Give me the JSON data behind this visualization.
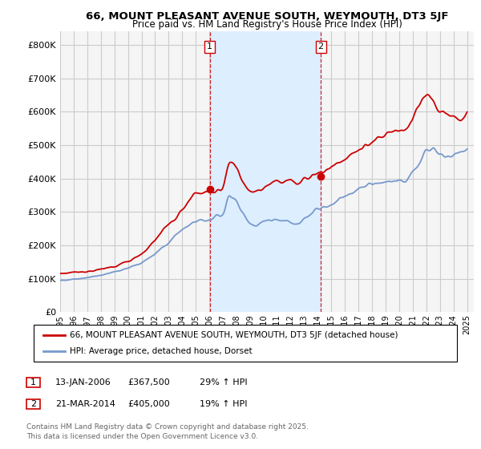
{
  "title": "66, MOUNT PLEASANT AVENUE SOUTH, WEYMOUTH, DT3 5JF",
  "subtitle": "Price paid vs. HM Land Registry's House Price Index (HPI)",
  "legend_line1": "66, MOUNT PLEASANT AVENUE SOUTH, WEYMOUTH, DT3 5JF (detached house)",
  "legend_line2": "HPI: Average price, detached house, Dorset",
  "annotation1": {
    "num": "1",
    "date": "13-JAN-2006",
    "price": "£367,500",
    "hpi": "29% ↑ HPI",
    "x_year": 2006.04
  },
  "annotation2": {
    "num": "2",
    "date": "21-MAR-2014",
    "price": "£405,000",
    "hpi": "19% ↑ HPI",
    "x_year": 2014.22
  },
  "footer": "Contains HM Land Registry data © Crown copyright and database right 2025.\nThis data is licensed under the Open Government Licence v3.0.",
  "yticks": [
    0,
    100000,
    200000,
    300000,
    400000,
    500000,
    600000,
    700000,
    800000
  ],
  "ylim": [
    0,
    840000
  ],
  "xlim_start": 1995.0,
  "xlim_end": 2025.5,
  "background_color": "#ffffff",
  "plot_bg_color": "#f5f5f5",
  "grid_color": "#cccccc",
  "red_line_color": "#cc0000",
  "blue_line_color": "#7799cc",
  "vline_color": "#cc0000",
  "span_color": "#ddeeff",
  "hpi_x": [
    1995.0,
    1995.08,
    1995.17,
    1995.25,
    1995.33,
    1995.42,
    1995.5,
    1995.58,
    1995.67,
    1995.75,
    1995.83,
    1995.92,
    1996.0,
    1996.08,
    1996.17,
    1996.25,
    1996.33,
    1996.42,
    1996.5,
    1996.58,
    1996.67,
    1996.75,
    1996.83,
    1996.92,
    1997.0,
    1997.08,
    1997.17,
    1997.25,
    1997.33,
    1997.42,
    1997.5,
    1997.58,
    1997.67,
    1997.75,
    1997.83,
    1997.92,
    1998.0,
    1998.08,
    1998.17,
    1998.25,
    1998.33,
    1998.42,
    1998.5,
    1998.58,
    1998.67,
    1998.75,
    1998.83,
    1998.92,
    1999.0,
    1999.08,
    1999.17,
    1999.25,
    1999.33,
    1999.42,
    1999.5,
    1999.58,
    1999.67,
    1999.75,
    1999.83,
    1999.92,
    2000.0,
    2000.08,
    2000.17,
    2000.25,
    2000.33,
    2000.42,
    2000.5,
    2000.58,
    2000.67,
    2000.75,
    2000.83,
    2000.92,
    2001.0,
    2001.08,
    2001.17,
    2001.25,
    2001.33,
    2001.42,
    2001.5,
    2001.58,
    2001.67,
    2001.75,
    2001.83,
    2001.92,
    2002.0,
    2002.08,
    2002.17,
    2002.25,
    2002.33,
    2002.42,
    2002.5,
    2002.58,
    2002.67,
    2002.75,
    2002.83,
    2002.92,
    2003.0,
    2003.08,
    2003.17,
    2003.25,
    2003.33,
    2003.42,
    2003.5,
    2003.58,
    2003.67,
    2003.75,
    2003.83,
    2003.92,
    2004.0,
    2004.08,
    2004.17,
    2004.25,
    2004.33,
    2004.42,
    2004.5,
    2004.58,
    2004.67,
    2004.75,
    2004.83,
    2004.92,
    2005.0,
    2005.08,
    2005.17,
    2005.25,
    2005.33,
    2005.42,
    2005.5,
    2005.58,
    2005.67,
    2005.75,
    2005.83,
    2005.92,
    2006.0,
    2006.08,
    2006.17,
    2006.25,
    2006.33,
    2006.42,
    2006.5,
    2006.58,
    2006.67,
    2006.75,
    2006.83,
    2006.92,
    2007.0,
    2007.08,
    2007.17,
    2007.25,
    2007.33,
    2007.42,
    2007.5,
    2007.58,
    2007.67,
    2007.75,
    2007.83,
    2007.92,
    2008.0,
    2008.08,
    2008.17,
    2008.25,
    2008.33,
    2008.42,
    2008.5,
    2008.58,
    2008.67,
    2008.75,
    2008.83,
    2008.92,
    2009.0,
    2009.08,
    2009.17,
    2009.25,
    2009.33,
    2009.42,
    2009.5,
    2009.58,
    2009.67,
    2009.75,
    2009.83,
    2009.92,
    2010.0,
    2010.08,
    2010.17,
    2010.25,
    2010.33,
    2010.42,
    2010.5,
    2010.58,
    2010.67,
    2010.75,
    2010.83,
    2010.92,
    2011.0,
    2011.08,
    2011.17,
    2011.25,
    2011.33,
    2011.42,
    2011.5,
    2011.58,
    2011.67,
    2011.75,
    2011.83,
    2011.92,
    2012.0,
    2012.08,
    2012.17,
    2012.25,
    2012.33,
    2012.42,
    2012.5,
    2012.58,
    2012.67,
    2012.75,
    2012.83,
    2012.92,
    2013.0,
    2013.08,
    2013.17,
    2013.25,
    2013.33,
    2013.42,
    2013.5,
    2013.58,
    2013.67,
    2013.75,
    2013.83,
    2013.92,
    2014.0,
    2014.08,
    2014.17,
    2014.25,
    2014.33,
    2014.42,
    2014.5,
    2014.58,
    2014.67,
    2014.75,
    2014.83,
    2014.92,
    2015.0,
    2015.08,
    2015.17,
    2015.25,
    2015.33,
    2015.42,
    2015.5,
    2015.58,
    2015.67,
    2015.75,
    2015.83,
    2015.92,
    2016.0,
    2016.08,
    2016.17,
    2016.25,
    2016.33,
    2016.42,
    2016.5,
    2016.58,
    2016.67,
    2016.75,
    2016.83,
    2016.92,
    2017.0,
    2017.08,
    2017.17,
    2017.25,
    2017.33,
    2017.42,
    2017.5,
    2017.58,
    2017.67,
    2017.75,
    2017.83,
    2017.92,
    2018.0,
    2018.08,
    2018.17,
    2018.25,
    2018.33,
    2018.42,
    2018.5,
    2018.58,
    2018.67,
    2018.75,
    2018.83,
    2018.92,
    2019.0,
    2019.08,
    2019.17,
    2019.25,
    2019.33,
    2019.42,
    2019.5,
    2019.58,
    2019.67,
    2019.75,
    2019.83,
    2019.92,
    2020.0,
    2020.08,
    2020.17,
    2020.25,
    2020.33,
    2020.42,
    2020.5,
    2020.58,
    2020.67,
    2020.75,
    2020.83,
    2020.92,
    2021.0,
    2021.08,
    2021.17,
    2021.25,
    2021.33,
    2021.42,
    2021.5,
    2021.58,
    2021.67,
    2021.75,
    2021.83,
    2021.92,
    2022.0,
    2022.08,
    2022.17,
    2022.25,
    2022.33,
    2022.42,
    2022.5,
    2022.58,
    2022.67,
    2022.75,
    2022.83,
    2022.92,
    2023.0,
    2023.08,
    2023.17,
    2023.25,
    2023.33,
    2023.42,
    2023.5,
    2023.58,
    2023.67,
    2023.75,
    2023.83,
    2023.92,
    2024.0,
    2024.08,
    2024.17,
    2024.25,
    2024.33,
    2024.42,
    2024.5,
    2024.58,
    2024.67,
    2024.75,
    2024.83,
    2024.92,
    2025.0
  ],
  "sale1_x": 2006.04,
  "sale1_y": 367500,
  "sale2_x": 2014.22,
  "sale2_y": 405000
}
